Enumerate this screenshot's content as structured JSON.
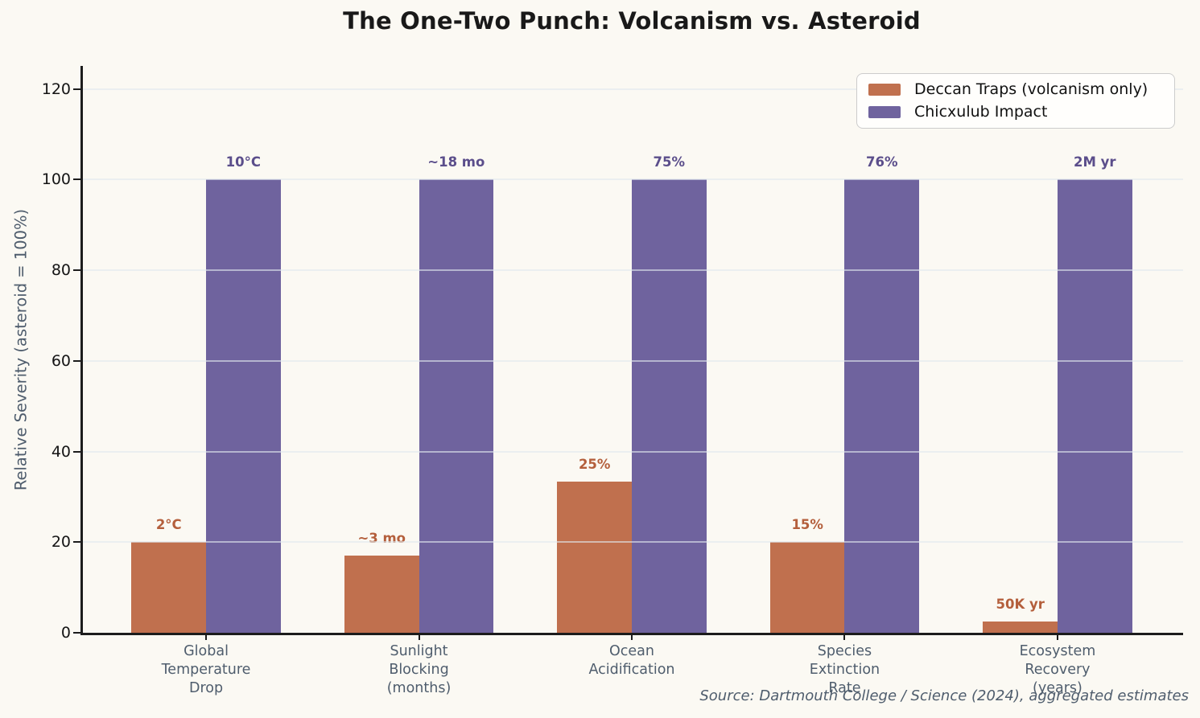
{
  "chart_data": {
    "type": "bar",
    "title": "The One-Two Punch: Volcanism vs. Asteroid",
    "ylabel": "Relative Severity (asteroid = 100%)",
    "xlabel": "",
    "categories": [
      "Global\nTemperature\nDrop",
      "Sunlight\nBlocking\n(months)",
      "Ocean\nAcidification",
      "Species\nExtinction\nRate",
      "Ecosystem\nRecovery\n(years)"
    ],
    "series": [
      {
        "name": "Deccan Traps (volcanism only)",
        "color": "#c0704e",
        "label_color": "#b45f3c",
        "values": [
          20,
          17,
          33.3,
          20,
          2.5
        ],
        "labels": [
          "2°C",
          "~3 mo",
          "25%",
          "15%",
          "50K yr"
        ]
      },
      {
        "name": "Chicxulub Impact",
        "color": "#6f639e",
        "label_color": "#5b4e8b",
        "values": [
          100,
          100,
          100,
          100,
          100
        ],
        "labels": [
          "10°C",
          "~18 mo",
          "75%",
          "76%",
          "2M yr"
        ]
      }
    ],
    "yticks": [
      0,
      20,
      40,
      60,
      80,
      100,
      120
    ],
    "ylim": [
      0,
      125
    ],
    "grid": true,
    "legend_position": "upper right",
    "background_color": "#fbf9f3",
    "source_note": "Source: Dartmouth College / Science (2024), aggregated estimates"
  }
}
